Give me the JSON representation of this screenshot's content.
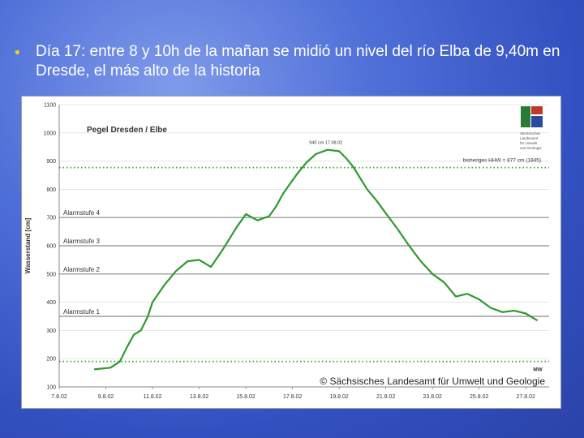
{
  "slide": {
    "bullet_text": "Día 17: entre 8 y 10h de la mañan se midió un nivel del río Elba de 9,40m en Dresde, el más alto de la historia"
  },
  "chart_data": {
    "type": "line",
    "title": "Pegel Dresden / Elbe",
    "ylabel": "Wasserstand [cm]",
    "xlabel": "",
    "ylim": [
      100,
      1100
    ],
    "yticks": [
      100,
      200,
      300,
      400,
      500,
      600,
      700,
      800,
      900,
      1000,
      1100
    ],
    "xticks": [
      "7.8.02",
      "9.8.02",
      "11.8.02",
      "13.8.02",
      "15.8.02",
      "17.8.02",
      "19.8.02",
      "21.8.02",
      "23.8.02",
      "25.8.02",
      "27.8.02"
    ],
    "xlim_days": [
      0,
      21
    ],
    "peak_label": "940 cm 17.08.02",
    "reference_lines": [
      {
        "label": "bisheriges HHW = 877 cm (1845)",
        "value": 877,
        "style": "dotted"
      },
      {
        "label": "Alarmstufe 4",
        "value": 700,
        "style": "solid"
      },
      {
        "label": "Alarmstufe 3",
        "value": 600,
        "style": "solid"
      },
      {
        "label": "Alarmstufe 2",
        "value": 500,
        "style": "solid"
      },
      {
        "label": "Alarmstufe 1",
        "value": 350,
        "style": "solid"
      },
      {
        "label": "MW",
        "value": 190,
        "style": "dotted"
      }
    ],
    "series": [
      {
        "x": [
          1.5,
          2.2,
          2.6,
          2.9,
          3.2,
          3.5,
          3.8,
          4.0,
          4.5,
          5.0,
          5.5,
          6.0,
          6.5,
          7.0,
          7.6,
          8.0,
          8.5,
          9.0,
          9.3,
          9.6,
          9.9,
          10.2,
          10.6,
          11.0,
          11.5,
          12.0,
          12.3,
          12.6,
          12.9,
          13.2,
          13.6,
          14.0,
          14.5,
          15.0,
          15.5,
          16.0,
          16.5,
          17.0,
          17.5,
          18.0,
          18.5,
          19.0,
          19.5,
          20.0,
          20.5
        ],
        "y": [
          162,
          168,
          190,
          240,
          285,
          300,
          350,
          400,
          460,
          510,
          545,
          550,
          525,
          585,
          665,
          712,
          690,
          705,
          740,
          785,
          820,
          855,
          895,
          925,
          940,
          935,
          910,
          880,
          840,
          800,
          760,
          715,
          660,
          600,
          545,
          500,
          470,
          420,
          430,
          410,
          380,
          365,
          370,
          360,
          335
        ]
      }
    ]
  },
  "chart_labels": {
    "copyright": "© Sächsisches Landesamt für Umwelt und Geologie",
    "logo_text": "Sächsisches Landesamt für Umwelt und Geologie"
  },
  "colors": {
    "series": "#2e9a2e",
    "reference_dotted": "#3aa63a",
    "alarm_line": "#8a8a8a",
    "bullet": "#f2d21a"
  }
}
